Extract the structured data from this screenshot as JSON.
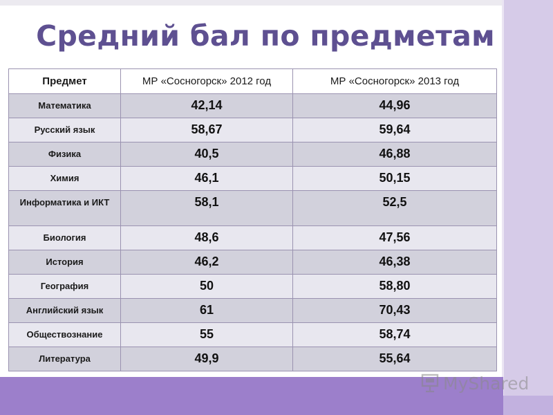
{
  "slide": {
    "title": "Средний бал по предметам"
  },
  "table": {
    "headers": [
      "Предмет",
      "МР «Сосногорск» 2012 год",
      "МР «Сосногорск» 2013 год"
    ],
    "rows": [
      {
        "subject": "Математика",
        "y2012": "42,14",
        "y2013": "44,96"
      },
      {
        "subject": "Русский язык",
        "y2012": "58,67",
        "y2013": "59,64"
      },
      {
        "subject": "Физика",
        "y2012": "40,5",
        "y2013": "46,88"
      },
      {
        "subject": "Химия",
        "y2012": "46,1",
        "y2013": "50,15"
      },
      {
        "subject": "Информатика  и ИКТ",
        "y2012": "58,1",
        "y2013": "52,5"
      },
      {
        "subject": "Биология",
        "y2012": "48,6",
        "y2013": "47,56"
      },
      {
        "subject": "История",
        "y2012": "46,2",
        "y2013": "46,38"
      },
      {
        "subject": "География",
        "y2012": "50",
        "y2013": "58,80"
      },
      {
        "subject": "Английский язык",
        "y2012": "61",
        "y2013": "70,43"
      },
      {
        "subject": "Обществознание",
        "y2012": "55",
        "y2013": "58,74"
      },
      {
        "subject": "Литература",
        "y2012": "49,9",
        "y2013": "55,64"
      }
    ]
  },
  "watermark": {
    "text": "MyShared",
    "icon": "presentation-board-icon"
  },
  "colors": {
    "title": "#5e5091",
    "accent_band": "#9c7fcb",
    "side_band": "#d6cbe8",
    "row_dark": "#d2d1dc",
    "row_light": "#e8e7ef",
    "grid": "#9a92b0"
  }
}
